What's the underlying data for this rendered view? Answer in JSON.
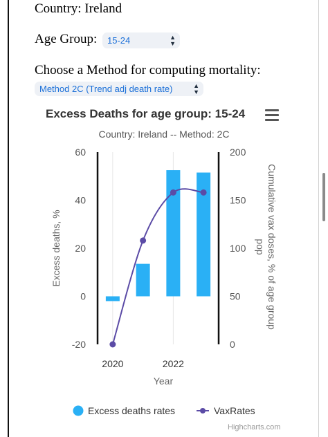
{
  "page": {
    "country_text": "Country: Ireland",
    "age_label": "Age Group:",
    "age_value": "15-24",
    "method_label": "Choose a Method for computing mortality:",
    "method_value": "Method 2C (Trend adj death rate)",
    "credits": "Highcharts.com",
    "menu_icon": "hamburger-menu-icon",
    "select_icon": "chevron-up-down-icon"
  },
  "chart_data": {
    "type": "bar",
    "title": "Excess Deaths for age group: 15-24",
    "subtitle": "Country: Ireland -- Method: 2C",
    "xlabel": "Year",
    "ylabel": "Excess deaths, %",
    "ylabel_right": "Cumulative vax doses, % of age group pop",
    "x": [
      2020,
      2021,
      2022,
      2023
    ],
    "x_ticks": [
      "2020",
      "2022"
    ],
    "xlim": [
      2019.5,
      2023.5
    ],
    "ylim": [
      -20,
      60
    ],
    "yticks": [
      "-20",
      "0",
      "20",
      "40",
      "60"
    ],
    "ylim_right": [
      0,
      200
    ],
    "yticks_right": [
      "0",
      "50",
      "100",
      "150",
      "200"
    ],
    "grid": true,
    "legend_position": "bottom",
    "series": [
      {
        "name": "Excess deaths rates",
        "type": "bar",
        "axis": "left",
        "color": "#2ab0f5",
        "values": [
          -2,
          13.5,
          52.5,
          51.5
        ]
      },
      {
        "name": "VaxRates",
        "type": "line",
        "axis": "right",
        "color": "#5b4ba6",
        "values": [
          0,
          108,
          158,
          158
        ]
      }
    ]
  }
}
